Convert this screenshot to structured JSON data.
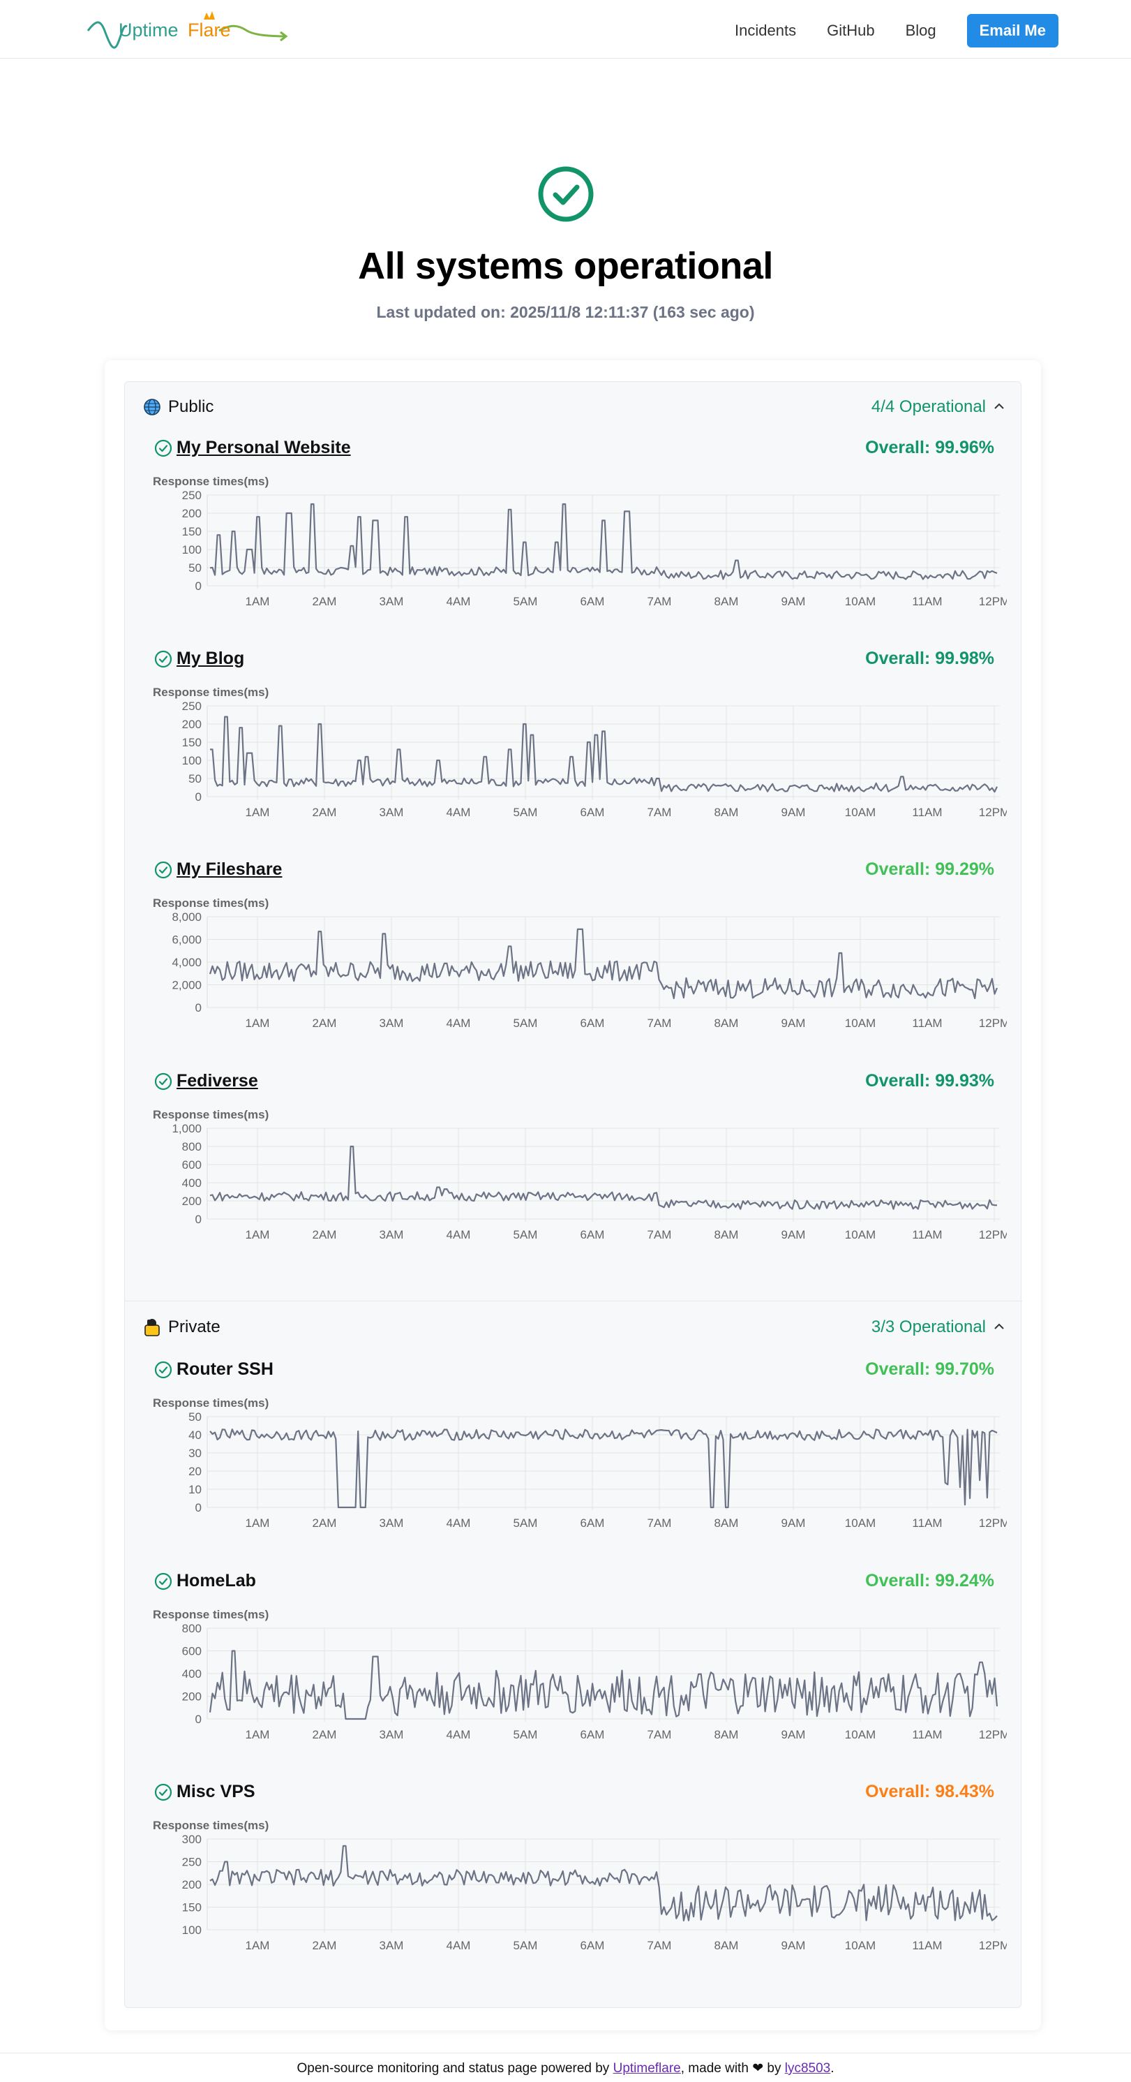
{
  "header": {
    "logo_text_1": "Uptime",
    "logo_text_2": "Flare",
    "nav": [
      "Incidents",
      "GitHub",
      "Blog"
    ],
    "email_label": "Email Me"
  },
  "hero": {
    "title": "All systems operational",
    "updated": "Last updated on: 2025/11/8 12:11:37 (163 sec ago)"
  },
  "groups": [
    {
      "name": "Public",
      "status": "4/4 Operational",
      "icon": "globe-icon"
    },
    {
      "name": "Private",
      "status": "3/3 Operational",
      "icon": "lock-icon"
    }
  ],
  "colors": {
    "green": "#12946a",
    "light_green": "#40c057",
    "orange": "#fd7e14",
    "line": "#6b7385",
    "accent": "#228be6"
  },
  "monitors": [
    {
      "name": "My Personal Website",
      "overall": "Overall: 99.96%",
      "color": "#12946a",
      "link": true,
      "chart_data": {
        "type": "line",
        "ylabel": "Response times(ms)",
        "yticks": [
          "250",
          "200",
          "150",
          "100",
          "50",
          "0"
        ],
        "ymax": 250,
        "xticks": [
          "1AM",
          "2AM",
          "3AM",
          "4AM",
          "5AM",
          "6AM",
          "7AM",
          "8AM",
          "9AM",
          "10AM",
          "11AM",
          "12PM"
        ],
        "base": 40,
        "noise": 12,
        "spikes": [
          [
            0.01,
            140
          ],
          [
            0.03,
            150
          ],
          [
            0.05,
            100
          ],
          [
            0.06,
            190
          ],
          [
            0.1,
            200
          ],
          [
            0.13,
            225
          ],
          [
            0.18,
            110
          ],
          [
            0.19,
            190
          ],
          [
            0.21,
            180
          ],
          [
            0.25,
            190
          ],
          [
            0.38,
            210
          ],
          [
            0.4,
            120
          ],
          [
            0.44,
            120
          ],
          [
            0.45,
            225
          ],
          [
            0.5,
            180
          ],
          [
            0.53,
            205
          ],
          [
            0.67,
            70
          ]
        ],
        "tail_base": 30
      }
    },
    {
      "name": "My Blog",
      "overall": "Overall: 99.98%",
      "color": "#12946a",
      "link": true,
      "chart_data": {
        "type": "line",
        "ylabel": "Response times(ms)",
        "yticks": [
          "250",
          "200",
          "150",
          "100",
          "50",
          "0"
        ],
        "ymax": 250,
        "xticks": [
          "1AM",
          "2AM",
          "3AM",
          "4AM",
          "5AM",
          "6AM",
          "7AM",
          "8AM",
          "9AM",
          "10AM",
          "11AM",
          "12PM"
        ],
        "base": 40,
        "noise": 12,
        "spikes": [
          [
            0.0,
            130
          ],
          [
            0.02,
            220
          ],
          [
            0.04,
            190
          ],
          [
            0.05,
            120
          ],
          [
            0.09,
            195
          ],
          [
            0.14,
            200
          ],
          [
            0.19,
            100
          ],
          [
            0.2,
            110
          ],
          [
            0.24,
            130
          ],
          [
            0.29,
            100
          ],
          [
            0.35,
            110
          ],
          [
            0.38,
            130
          ],
          [
            0.4,
            200
          ],
          [
            0.41,
            170
          ],
          [
            0.46,
            110
          ],
          [
            0.48,
            150
          ],
          [
            0.49,
            170
          ],
          [
            0.5,
            180
          ],
          [
            0.57,
            50
          ],
          [
            0.88,
            55
          ]
        ],
        "tail_base": 25
      }
    },
    {
      "name": "My Fileshare",
      "overall": "Overall: 99.29%",
      "color": "#40c057",
      "link": true,
      "chart_data": {
        "type": "line",
        "ylabel": "Response times(ms)",
        "yticks": [
          "8,000",
          "6,000",
          "4,000",
          "2,000",
          "0"
        ],
        "ymax": 8000,
        "xticks": [
          "1AM",
          "2AM",
          "3AM",
          "4AM",
          "5AM",
          "6AM",
          "7AM",
          "8AM",
          "9AM",
          "10AM",
          "11AM",
          "12PM"
        ],
        "base": 3200,
        "noise": 900,
        "spikes": [
          [
            0.14,
            6700
          ],
          [
            0.22,
            6500
          ],
          [
            0.38,
            5400
          ],
          [
            0.47,
            6900
          ],
          [
            0.8,
            4800
          ]
        ],
        "tail_base": 1700
      }
    },
    {
      "name": "Fediverse",
      "overall": "Overall: 99.93%",
      "color": "#12946a",
      "link": true,
      "chart_data": {
        "type": "line",
        "ylabel": "Response times(ms)",
        "yticks": [
          "1,000",
          "800",
          "600",
          "400",
          "200",
          "0"
        ],
        "ymax": 1000,
        "xticks": [
          "1AM",
          "2AM",
          "3AM",
          "4AM",
          "5AM",
          "6AM",
          "7AM",
          "8AM",
          "9AM",
          "10AM",
          "11AM",
          "12PM"
        ],
        "base": 250,
        "noise": 50,
        "spikes": [
          [
            0.18,
            800
          ],
          [
            0.29,
            350
          ],
          [
            0.3,
            330
          ]
        ],
        "tail_base": 160
      }
    },
    {
      "name": "Router SSH",
      "overall": "Overall: 99.70%",
      "color": "#40c057",
      "link": false,
      "chart_data": {
        "type": "line",
        "ylabel": "Response times(ms)",
        "yticks": [
          "50",
          "40",
          "30",
          "20",
          "10",
          "0"
        ],
        "ymax": 50,
        "xticks": [
          "1AM",
          "2AM",
          "3AM",
          "4AM",
          "5AM",
          "6AM",
          "7AM",
          "8AM",
          "9AM",
          "10AM",
          "11AM",
          "12PM"
        ],
        "base": 40,
        "noise": 3,
        "drops": [
          [
            0.16,
            0.185
          ],
          [
            0.19,
            0.2
          ],
          [
            0.635,
            0.64
          ],
          [
            0.655,
            0.66
          ]
        ],
        "tail_drops": true,
        "tail_base": 40
      }
    },
    {
      "name": "HomeLab",
      "overall": "Overall: 99.24%",
      "color": "#40c057",
      "link": false,
      "chart_data": {
        "type": "line",
        "ylabel": "Response times(ms)",
        "yticks": [
          "800",
          "600",
          "400",
          "200",
          "0"
        ],
        "ymax": 800,
        "xticks": [
          "1AM",
          "2AM",
          "3AM",
          "4AM",
          "5AM",
          "6AM",
          "7AM",
          "8AM",
          "9AM",
          "10AM",
          "11AM",
          "12PM"
        ],
        "base": 230,
        "noise": 200,
        "spikes": [
          [
            0.03,
            600
          ],
          [
            0.19,
            500
          ],
          [
            0.21,
            550
          ],
          [
            0.98,
            500
          ]
        ],
        "drops": [
          [
            0.17,
            0.2
          ]
        ],
        "tail_base": 220
      }
    },
    {
      "name": "Misc VPS",
      "overall": "Overall: 98.43%",
      "color": "#fd7e14",
      "link": false,
      "chart_data": {
        "type": "line",
        "ylabel": "Response times(ms)",
        "yticks": [
          "300",
          "250",
          "200",
          "150",
          "100"
        ],
        "ymin": 100,
        "ymax": 300,
        "xticks": [
          "1AM",
          "2AM",
          "3AM",
          "4AM",
          "5AM",
          "6AM",
          "7AM",
          "8AM",
          "9AM",
          "10AM",
          "11AM",
          "12PM"
        ],
        "base": 215,
        "noise": 18,
        "spikes": [
          [
            0.02,
            250
          ],
          [
            0.17,
            285
          ]
        ],
        "tail_base": 160,
        "tail_noise": 40
      }
    }
  ],
  "footer": {
    "text_1": "Open-source monitoring and status page powered by ",
    "link_1": "Uptimeflare",
    "text_2": ", made with ",
    "heart": "❤",
    "text_3": " by ",
    "link_2": "lyc8503",
    "text_4": "."
  }
}
